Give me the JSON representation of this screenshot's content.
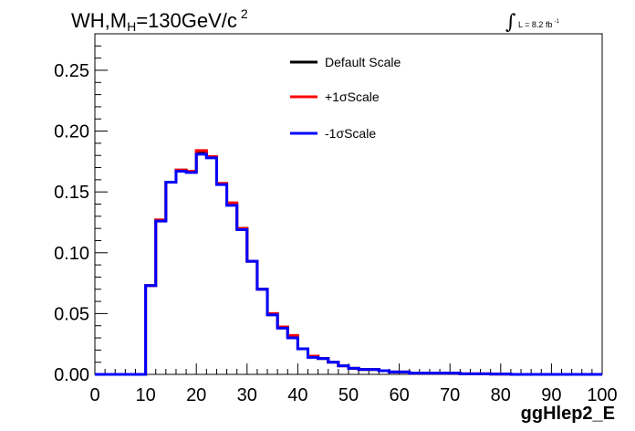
{
  "title": {
    "main": "WH,M",
    "sub": "H",
    "rest": "=130GeV/c",
    "sup": "2"
  },
  "luminosity": {
    "integral": "∫",
    "text": "L = 8.2 fb",
    "sup": "-1"
  },
  "colors": {
    "default": "#000000",
    "plus": "#ff0000",
    "minus": "#0000ff"
  },
  "chart_data": {
    "type": "line",
    "style": "step histogram",
    "xlabel": "ggHlep2_E",
    "ylabel": "",
    "xlim": [
      0,
      100
    ],
    "ylim": [
      0,
      0.28
    ],
    "x_ticks": [
      "0",
      "10",
      "20",
      "30",
      "40",
      "50",
      "60",
      "70",
      "80",
      "90",
      "100"
    ],
    "y_ticks": [
      "0.00",
      "0.05",
      "0.10",
      "0.15",
      "0.20",
      "0.25"
    ],
    "bin_edges": [
      0,
      2,
      4,
      6,
      8,
      10,
      12,
      14,
      16,
      18,
      20,
      22,
      24,
      26,
      28,
      30,
      32,
      34,
      36,
      38,
      40,
      42,
      44,
      46,
      48,
      50,
      52,
      54,
      56,
      58,
      60,
      62,
      64,
      66,
      68,
      70,
      72,
      74,
      76,
      78,
      80,
      82,
      84,
      86,
      88,
      90,
      92,
      94,
      96,
      98,
      100
    ],
    "series": [
      {
        "name": "Default Scale",
        "values": [
          0,
          0,
          0,
          0,
          0,
          0.073,
          0.127,
          0.158,
          0.168,
          0.167,
          0.183,
          0.179,
          0.157,
          0.14,
          0.12,
          0.093,
          0.07,
          0.049,
          0.039,
          0.031,
          0.021,
          0.015,
          0.013,
          0.01,
          0.007,
          0.005,
          0.004,
          0.004,
          0.003,
          0.002,
          0.002,
          0.001,
          0.001,
          0.001,
          0.001,
          0.001,
          0.0005,
          0.0005,
          0.0005,
          0.0003,
          0.0003,
          0,
          0,
          0,
          0,
          0,
          0,
          0,
          0,
          0
        ]
      },
      {
        "name": "+1σScale",
        "values": [
          0,
          0,
          0,
          0,
          0,
          0.073,
          0.127,
          0.158,
          0.168,
          0.167,
          0.184,
          0.179,
          0.157,
          0.141,
          0.12,
          0.093,
          0.07,
          0.05,
          0.039,
          0.032,
          0.021,
          0.015,
          0.013,
          0.01,
          0.007,
          0.005,
          0.004,
          0.004,
          0.003,
          0.002,
          0.002,
          0.001,
          0.001,
          0.001,
          0.001,
          0.001,
          0.0005,
          0.0005,
          0.0005,
          0.0003,
          0.0003,
          0,
          0,
          0,
          0,
          0,
          0,
          0,
          0,
          0
        ]
      },
      {
        "name": "-1σScale",
        "values": [
          0,
          0,
          0,
          0,
          0,
          0.073,
          0.126,
          0.158,
          0.167,
          0.166,
          0.181,
          0.178,
          0.156,
          0.139,
          0.119,
          0.093,
          0.07,
          0.049,
          0.038,
          0.03,
          0.021,
          0.014,
          0.013,
          0.01,
          0.007,
          0.005,
          0.004,
          0.004,
          0.003,
          0.002,
          0.002,
          0.001,
          0.001,
          0.001,
          0.001,
          0.001,
          0.0005,
          0.0005,
          0.0005,
          0.0003,
          0.0003,
          0,
          0,
          0,
          0,
          0,
          0,
          0,
          0,
          0
        ]
      }
    ],
    "legend_position": "top-center",
    "grid": false
  }
}
